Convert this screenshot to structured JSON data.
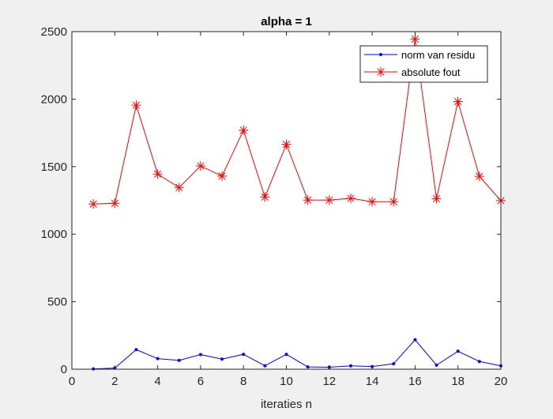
{
  "chart_data": {
    "type": "line",
    "title": "alpha = 1",
    "xlabel": "iteraties n",
    "ylabel": "",
    "xlim": [
      0,
      20
    ],
    "ylim": [
      0,
      2500
    ],
    "xticks": [
      "0",
      "2",
      "4",
      "6",
      "8",
      "10",
      "12",
      "14",
      "16",
      "18",
      "20"
    ],
    "yticks": [
      "0",
      "500",
      "1000",
      "1500",
      "2000",
      "2500"
    ],
    "grid": false,
    "legend_position": "top-right",
    "x": [
      1,
      2,
      3,
      4,
      5,
      6,
      7,
      8,
      9,
      10,
      11,
      12,
      13,
      14,
      15,
      16,
      17,
      18,
      19,
      20
    ],
    "series": [
      {
        "name": "norm van residu",
        "color": "#0000ff",
        "marker": "dot",
        "values": [
          2,
          8,
          145,
          78,
          65,
          108,
          75,
          110,
          25,
          110,
          17,
          15,
          25,
          20,
          40,
          218,
          30,
          133,
          57,
          25
        ]
      },
      {
        "name": "absolute fout",
        "color": "#ff0000",
        "marker": "asterisk",
        "values": [
          1223,
          1228,
          1955,
          1445,
          1345,
          1505,
          1430,
          1770,
          1275,
          1665,
          1252,
          1252,
          1265,
          1240,
          1240,
          2445,
          1262,
          1982,
          1428,
          1248
        ]
      }
    ]
  }
}
